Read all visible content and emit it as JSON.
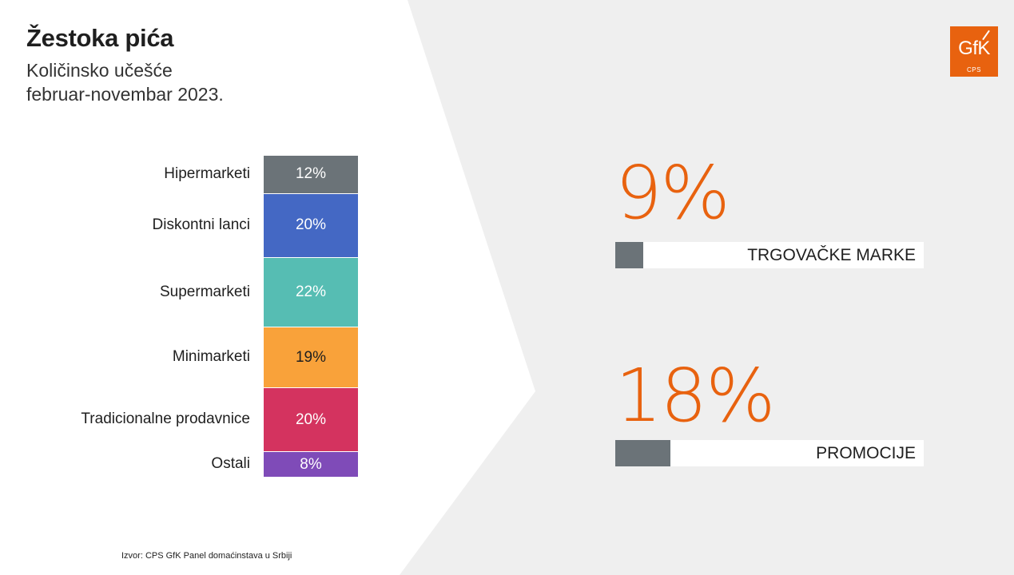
{
  "header": {
    "title": "Žestoka pića",
    "subtitle_line1": "Količinsko učešće",
    "subtitle_line2": "februar-novembar 2023."
  },
  "logo": {
    "text": "GfK",
    "sub": "CPS",
    "color": "#e8620f"
  },
  "chart_data": {
    "type": "bar",
    "stacked": true,
    "unit": "%",
    "categories": [
      "Hipermarketi",
      "Diskontni lanci",
      "Supermarketi",
      "Minimarketi",
      "Tradicionalne prodavnice",
      "Ostali"
    ],
    "values": [
      12,
      20,
      22,
      19,
      20,
      8
    ],
    "value_labels": [
      "12%",
      "20%",
      "22%",
      "19%",
      "20%",
      "8%"
    ],
    "colors": [
      "#6b7378",
      "#4468c4",
      "#56bdb3",
      "#f9a23a",
      "#d4335f",
      "#7f4bb8"
    ]
  },
  "kpis": [
    {
      "value": "9%",
      "label": "TRGOVAČKE MARKE",
      "fraction": 0.09
    },
    {
      "value": "18%",
      "label": "PROMOCIJE",
      "fraction": 0.18
    }
  ],
  "footer": {
    "source": "Izvor: CPS GfK Panel domaćinstava u Srbiji"
  },
  "colors": {
    "accent": "#e8620f",
    "panel_bg": "#efefef",
    "kpi_fill": "#6b7378"
  }
}
